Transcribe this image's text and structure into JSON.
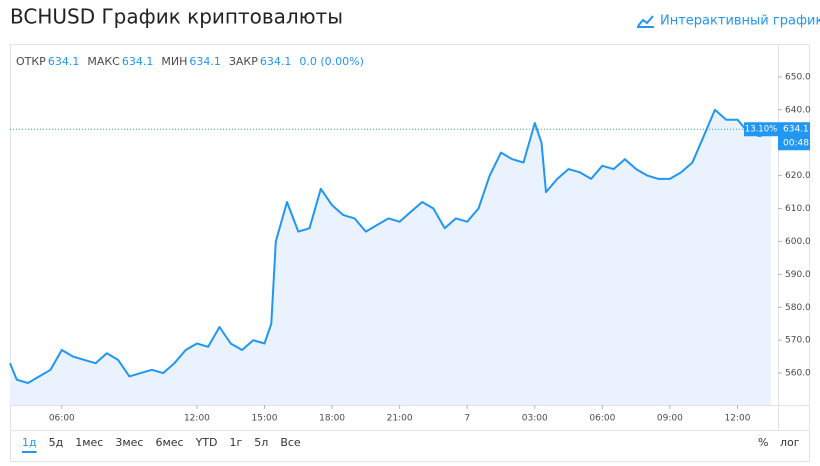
{
  "header": {
    "title": "BCHUSD График криптовалюты",
    "link": "Интерактивный график"
  },
  "chart_data": {
    "type": "area",
    "color": "#2196f3",
    "fill": "#eaf3fd",
    "x": [
      3.7,
      4,
      4.5,
      5,
      5.5,
      6,
      6.5,
      7,
      7.5,
      8,
      8.5,
      9,
      9.5,
      10,
      10.5,
      11,
      11.5,
      12,
      12.5,
      13,
      13.5,
      14,
      14.5,
      15,
      15.3,
      15.5,
      16,
      16.5,
      17,
      17.5,
      18,
      18.5,
      19,
      19.5,
      20,
      20.5,
      21,
      21.5,
      22,
      22.5,
      23,
      23.5,
      24,
      24.5,
      25,
      25.5,
      26,
      26.5,
      27,
      27.3,
      27.5,
      28,
      28.5,
      29,
      29.5,
      30,
      30.5,
      31,
      31.5,
      32,
      32.5,
      33,
      33.5,
      34,
      34.5,
      35,
      35.5,
      36,
      36.5,
      37,
      37.5
    ],
    "values": [
      563,
      558,
      557,
      559,
      561,
      567,
      565,
      564,
      563,
      566,
      564,
      559,
      560,
      561,
      560,
      563,
      567,
      569,
      568,
      574,
      569,
      567,
      570,
      569,
      575,
      600,
      612,
      603,
      604,
      616,
      611,
      608,
      607,
      603,
      605,
      607,
      606,
      609,
      612,
      610,
      604,
      607,
      606,
      610,
      620,
      627,
      625,
      624,
      636,
      630,
      615,
      619,
      622,
      621,
      619,
      623,
      622,
      625,
      622,
      620,
      619,
      619,
      621,
      624,
      632,
      640,
      637,
      637,
      633,
      632,
      634.1
    ],
    "xlim": [
      3.7,
      37.8
    ],
    "xticks": [
      {
        "value": 6,
        "label": "06:00"
      },
      {
        "value": 12,
        "label": "12:00"
      },
      {
        "value": 15,
        "label": "15:00"
      },
      {
        "value": 18,
        "label": "18:00"
      },
      {
        "value": 21,
        "label": "21:00"
      },
      {
        "value": 24,
        "label": "7"
      },
      {
        "value": 27,
        "label": "03:00"
      },
      {
        "value": 30,
        "label": "06:00"
      },
      {
        "value": 33,
        "label": "09:00"
      },
      {
        "value": 36,
        "label": "12:00"
      }
    ],
    "ylim": [
      550.3,
      659.7
    ],
    "yticks": [
      {
        "value": 560,
        "label": "560.0"
      },
      {
        "value": 570,
        "label": "570.0"
      },
      {
        "value": 580,
        "label": "580.0"
      },
      {
        "value": 590,
        "label": "590.0"
      },
      {
        "value": 600,
        "label": "600.0"
      },
      {
        "value": 610,
        "label": "610.0"
      },
      {
        "value": 620,
        "label": "620.0"
      },
      {
        "value": 630,
        "label": "630.0"
      },
      {
        "value": 640,
        "label": "640.0"
      },
      {
        "value": 650,
        "label": "650.0"
      }
    ],
    "legend": [
      {
        "label": "ОТКР",
        "value": 634.1
      },
      {
        "label": "МАКС",
        "value": 634.1
      },
      {
        "label": "МИН",
        "value": 634.1
      },
      {
        "label": "ЗАКР",
        "value": 634.1
      }
    ],
    "change": "0.0 (0.00%)",
    "tag_percent": "13.10%",
    "tag_time": "00:48"
  },
  "controls": {
    "ranges": [
      "1д",
      "5д",
      "1мес",
      "3мес",
      "6мес",
      "YTD",
      "1г",
      "5л",
      "Все"
    ],
    "percent": "%",
    "log": "лог"
  }
}
